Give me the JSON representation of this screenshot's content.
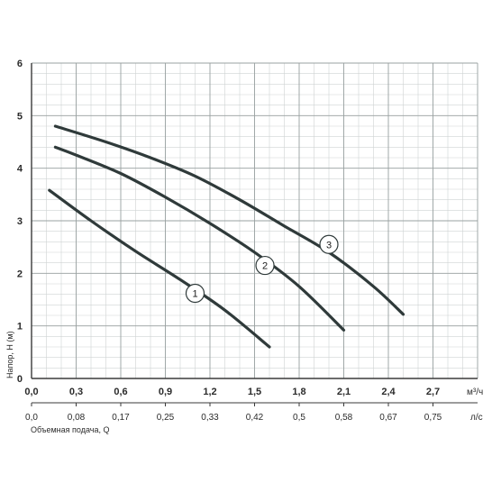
{
  "chart_data": {
    "type": "line",
    "title": "",
    "ylabel": "Напор, H (м)",
    "xlabel": "Объемная подача, Q",
    "x_unit_primary": "м³/ч",
    "x_unit_secondary": "л/с",
    "xlim": [
      0,
      3.0
    ],
    "ylim": [
      0,
      6
    ],
    "grid": true,
    "y_ticks": [
      "0",
      "1",
      "2",
      "3",
      "4",
      "5",
      "6"
    ],
    "x_ticks_primary": [
      "0,0",
      "0,3",
      "0,6",
      "0,9",
      "1,2",
      "1,5",
      "1,8",
      "2,1",
      "2,4",
      "2,7"
    ],
    "x_ticks_secondary": [
      "0,0",
      "0,08",
      "0,17",
      "0,25",
      "0,33",
      "0,42",
      "0,5",
      "0,58",
      "0,67",
      "0,75"
    ],
    "series": [
      {
        "name": "1",
        "color": "#2f3a3a",
        "x": [
          0.12,
          0.4,
          0.7,
          1.0,
          1.3,
          1.6
        ],
        "y": [
          3.58,
          3.0,
          2.42,
          1.88,
          1.3,
          0.6
        ],
        "label_at": [
          1.1,
          1.62
        ]
      },
      {
        "name": "2",
        "color": "#2f3a3a",
        "x": [
          0.16,
          0.3,
          0.6,
          0.9,
          1.2,
          1.5,
          1.8,
          2.1
        ],
        "y": [
          4.4,
          4.25,
          3.9,
          3.45,
          2.95,
          2.4,
          1.75,
          0.92
        ],
        "label_at": [
          1.57,
          2.15
        ]
      },
      {
        "name": "3",
        "color": "#2f3a3a",
        "x": [
          0.16,
          0.5,
          0.8,
          1.1,
          1.4,
          1.7,
          2.0,
          2.3,
          2.5
        ],
        "y": [
          4.8,
          4.5,
          4.2,
          3.85,
          3.4,
          2.9,
          2.4,
          1.75,
          1.22
        ],
        "label_at": [
          2.0,
          2.55
        ]
      }
    ]
  }
}
